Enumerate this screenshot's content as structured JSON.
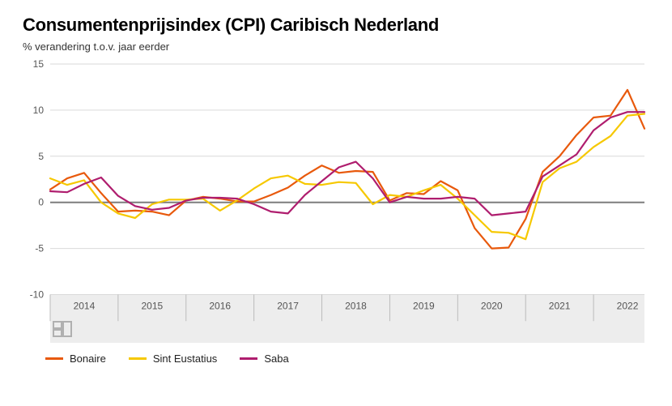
{
  "title": "Consumentenprijsindex (CPI) Caribisch Nederland",
  "subtitle": "% verandering t.o.v. jaar eerder",
  "chart": {
    "type": "line",
    "background_color": "#ffffff",
    "plot_band_bg": "#ededed",
    "grid_color": "#d9d9d9",
    "axis_zero_color": "#7d7d7d",
    "tick_label_color": "#555555",
    "tick_fontsize": 12,
    "ylim": [
      -10,
      15
    ],
    "yticks": [
      -10,
      -5,
      0,
      5,
      10,
      15
    ],
    "x_years": [
      2014,
      2015,
      2016,
      2017,
      2018,
      2019,
      2020,
      2021,
      2022
    ],
    "x_start_q": 0,
    "x_end_q": 35,
    "line_width": 2.2,
    "series": [
      {
        "name": "Bonaire",
        "color": "#e8590c",
        "values": [
          1.4,
          2.6,
          3.2,
          1.0,
          -1.0,
          -0.9,
          -1.0,
          -1.4,
          0.2,
          0.6,
          0.4,
          0.1,
          0.1,
          0.8,
          1.6,
          2.9,
          4.0,
          3.2,
          3.4,
          3.3,
          0.2,
          1.0,
          0.9,
          2.3,
          1.3,
          -2.8,
          -5.0,
          -4.9,
          -1.8,
          3.3,
          5.0,
          7.3,
          9.2,
          9.4,
          12.2,
          8.0
        ]
      },
      {
        "name": "Sint Eustatius",
        "color": "#f6c800",
        "values": [
          2.6,
          1.9,
          2.4,
          0.0,
          -1.2,
          -1.7,
          -0.2,
          0.3,
          0.3,
          0.4,
          -0.9,
          0.2,
          1.5,
          2.6,
          2.9,
          2.0,
          1.9,
          2.2,
          2.1,
          -0.2,
          0.8,
          0.6,
          1.3,
          1.9,
          0.4,
          -1.4,
          -3.2,
          -3.3,
          -4.0,
          2.2,
          3.7,
          4.4,
          6.0,
          7.2,
          9.4,
          9.6
        ]
      },
      {
        "name": "Saba",
        "color": "#af1d6e",
        "values": [
          1.2,
          1.1,
          2.0,
          2.7,
          0.7,
          -0.4,
          -0.8,
          -0.6,
          0.2,
          0.5,
          0.5,
          0.4,
          -0.2,
          -1.0,
          -1.2,
          0.8,
          2.3,
          3.8,
          4.4,
          2.6,
          0.0,
          0.6,
          0.4,
          0.4,
          0.6,
          0.4,
          -1.4,
          -1.2,
          -1.0,
          2.8,
          4.0,
          5.2,
          7.8,
          9.2,
          9.8,
          9.8
        ]
      }
    ],
    "legend_items": [
      "Bonaire",
      "Sint Eustatius",
      "Saba"
    ],
    "cbs_logo_color": "#b0b0b0",
    "axis_band_height_ratio": 0.17
  }
}
